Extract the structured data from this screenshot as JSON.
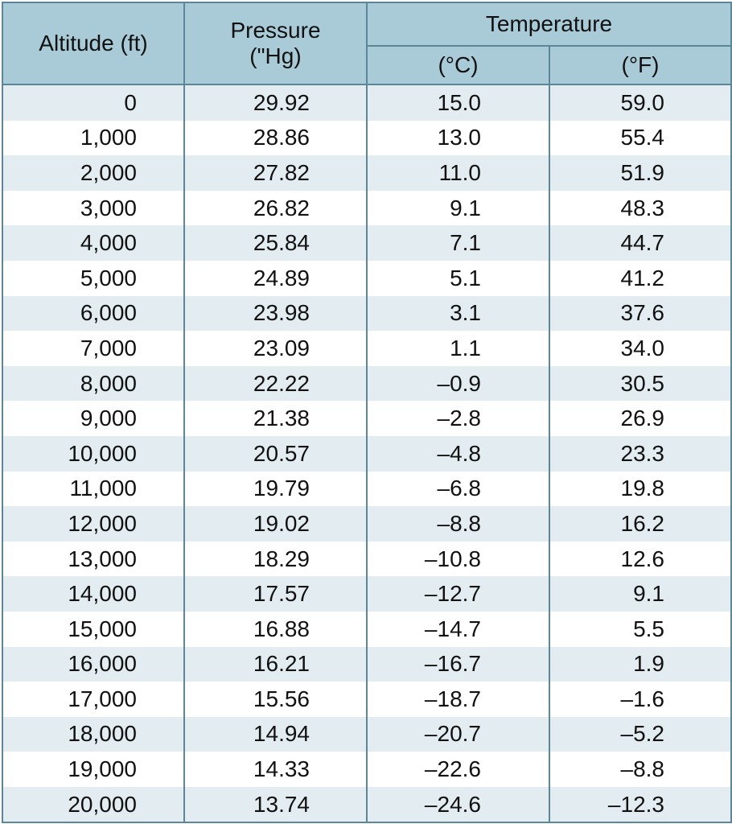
{
  "headers": {
    "altitude": "Altitude (ft)",
    "pressure": "Pressure\n(\"Hg)",
    "temperature": "Temperature",
    "celsius": "(°C)",
    "fahrenheit": "(°F)"
  },
  "rows": [
    {
      "altitude": "0",
      "pressure": "29.92",
      "temp_c": "15.0",
      "temp_f": "59.0"
    },
    {
      "altitude": "1,000",
      "pressure": "28.86",
      "temp_c": "13.0",
      "temp_f": "55.4"
    },
    {
      "altitude": "2,000",
      "pressure": "27.82",
      "temp_c": "11.0",
      "temp_f": "51.9"
    },
    {
      "altitude": "3,000",
      "pressure": "26.82",
      "temp_c": "9.1",
      "temp_f": "48.3"
    },
    {
      "altitude": "4,000",
      "pressure": "25.84",
      "temp_c": "7.1",
      "temp_f": "44.7"
    },
    {
      "altitude": "5,000",
      "pressure": "24.89",
      "temp_c": "5.1",
      "temp_f": "41.2"
    },
    {
      "altitude": "6,000",
      "pressure": "23.98",
      "temp_c": "3.1",
      "temp_f": "37.6"
    },
    {
      "altitude": "7,000",
      "pressure": "23.09",
      "temp_c": "1.1",
      "temp_f": "34.0"
    },
    {
      "altitude": "8,000",
      "pressure": "22.22",
      "temp_c": "–0.9",
      "temp_f": "30.5"
    },
    {
      "altitude": "9,000",
      "pressure": "21.38",
      "temp_c": "–2.8",
      "temp_f": "26.9"
    },
    {
      "altitude": "10,000",
      "pressure": "20.57",
      "temp_c": "–4.8",
      "temp_f": "23.3"
    },
    {
      "altitude": "11,000",
      "pressure": "19.79",
      "temp_c": "–6.8",
      "temp_f": "19.8"
    },
    {
      "altitude": "12,000",
      "pressure": "19.02",
      "temp_c": "–8.8",
      "temp_f": "16.2"
    },
    {
      "altitude": "13,000",
      "pressure": "18.29",
      "temp_c": "–10.8",
      "temp_f": "12.6"
    },
    {
      "altitude": "14,000",
      "pressure": "17.57",
      "temp_c": "–12.7",
      "temp_f": "9.1"
    },
    {
      "altitude": "15,000",
      "pressure": "16.88",
      "temp_c": "–14.7",
      "temp_f": "5.5"
    },
    {
      "altitude": "16,000",
      "pressure": "16.21",
      "temp_c": "–16.7",
      "temp_f": "1.9"
    },
    {
      "altitude": "17,000",
      "pressure": "15.56",
      "temp_c": "–18.7",
      "temp_f": "–1.6"
    },
    {
      "altitude": "18,000",
      "pressure": "14.94",
      "temp_c": "–20.7",
      "temp_f": "–5.2"
    },
    {
      "altitude": "19,000",
      "pressure": "14.33",
      "temp_c": "–22.6",
      "temp_f": "–8.8"
    },
    {
      "altitude": "20,000",
      "pressure": "13.74",
      "temp_c": "–24.6",
      "temp_f": "–12.3"
    }
  ],
  "colors": {
    "header_bg": "#a9cbd8",
    "border": "#5d8797",
    "stripe": "#e3ecf1",
    "row_bg": "#ffffff"
  }
}
